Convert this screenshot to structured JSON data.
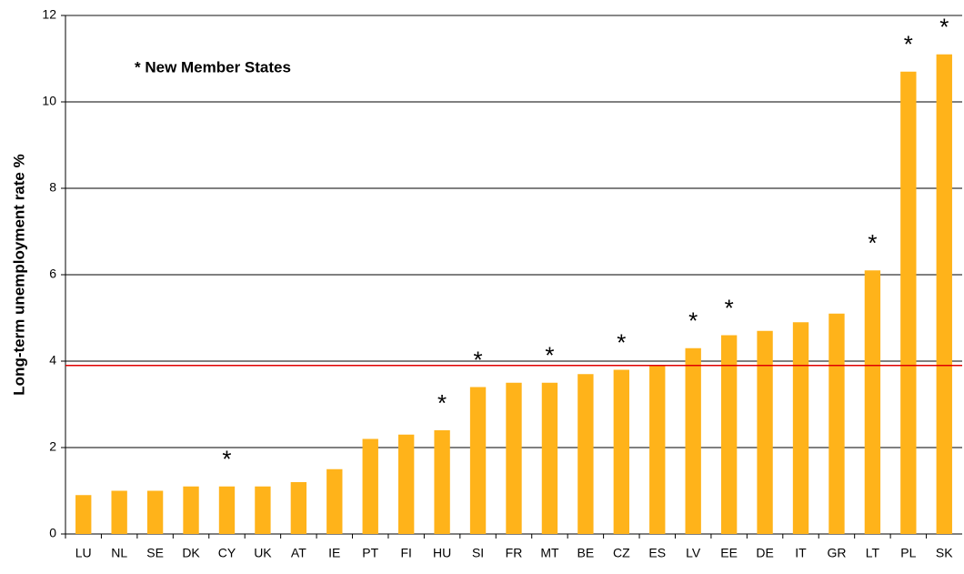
{
  "chart_data": {
    "type": "bar",
    "y_label": "Long-term unemployment rate %",
    "annotation": "* New Member States",
    "categories": [
      "LU",
      "NL",
      "SE",
      "DK",
      "CY",
      "UK",
      "AT",
      "IE",
      "PT",
      "FI",
      "HU",
      "SI",
      "FR",
      "MT",
      "BE",
      "CZ",
      "ES",
      "LV",
      "EE",
      "DE",
      "IT",
      "GR",
      "LT",
      "PL",
      "SK"
    ],
    "values": [
      0.9,
      1.0,
      1.0,
      1.1,
      1.1,
      1.1,
      1.2,
      1.5,
      2.2,
      2.3,
      2.4,
      3.4,
      3.5,
      3.5,
      3.7,
      3.8,
      3.9,
      4.3,
      4.6,
      4.7,
      4.9,
      5.1,
      6.1,
      10.7,
      11.1
    ],
    "markers": [
      null,
      null,
      null,
      null,
      "*",
      null,
      null,
      null,
      null,
      null,
      "*",
      "*",
      null,
      "*",
      null,
      "*",
      null,
      "*",
      "*",
      null,
      null,
      null,
      "*",
      "*",
      "*"
    ],
    "color": "#ffb31a",
    "reference_line": {
      "value": 3.9,
      "color": "#e00000"
    },
    "ylim": [
      0,
      12
    ],
    "yticks": [
      0,
      2,
      4,
      6,
      8,
      10,
      12
    ],
    "grid": true
  }
}
